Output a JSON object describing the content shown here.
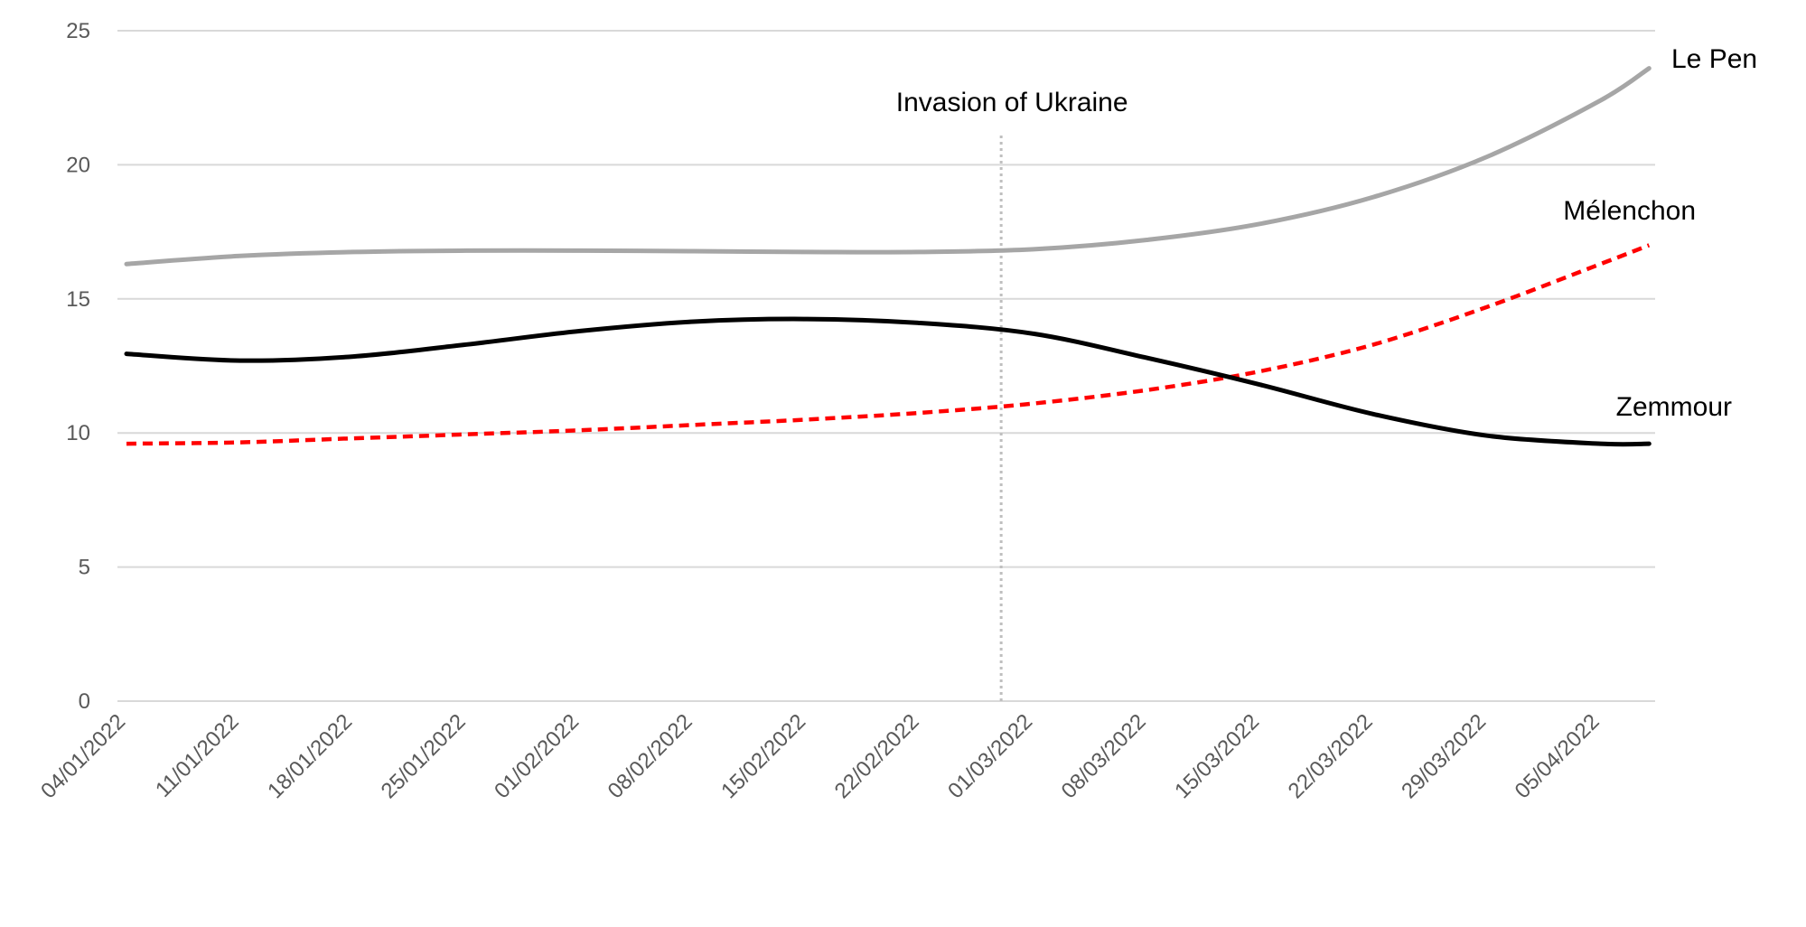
{
  "chart_data": {
    "type": "line",
    "title": "",
    "xlabel": "",
    "ylabel": "",
    "ylim": [
      0,
      25
    ],
    "y_ticks": [
      0,
      5,
      10,
      15,
      20,
      25
    ],
    "grid": true,
    "legend": "none",
    "x_ticks": [
      "04/01/2022",
      "11/01/2022",
      "18/01/2022",
      "25/01/2022",
      "01/02/2022",
      "08/02/2022",
      "15/02/2022",
      "22/02/2022",
      "01/03/2022",
      "08/03/2022",
      "15/03/2022",
      "22/03/2022",
      "29/03/2022",
      "05/04/2022"
    ],
    "series": [
      {
        "name": "Le Pen",
        "color": "#a6a6a6",
        "style": "solid",
        "points": [
          [
            "04/01/2022",
            16.3
          ],
          [
            "11/01/2022",
            16.6
          ],
          [
            "18/01/2022",
            16.75
          ],
          [
            "25/01/2022",
            16.8
          ],
          [
            "01/02/2022",
            16.8
          ],
          [
            "08/02/2022",
            16.78
          ],
          [
            "15/02/2022",
            16.75
          ],
          [
            "22/02/2022",
            16.75
          ],
          [
            "01/03/2022",
            16.85
          ],
          [
            "08/03/2022",
            17.2
          ],
          [
            "15/03/2022",
            17.8
          ],
          [
            "22/03/2022",
            18.8
          ],
          [
            "29/03/2022",
            20.3
          ],
          [
            "05/04/2022",
            22.4
          ],
          [
            "08/04/2022",
            23.6
          ]
        ]
      },
      {
        "name": "Mélenchon",
        "color": "#ff0000",
        "style": "dashed",
        "points": [
          [
            "04/01/2022",
            9.6
          ],
          [
            "11/01/2022",
            9.65
          ],
          [
            "18/01/2022",
            9.8
          ],
          [
            "25/01/2022",
            9.95
          ],
          [
            "01/02/2022",
            10.1
          ],
          [
            "08/02/2022",
            10.3
          ],
          [
            "15/02/2022",
            10.5
          ],
          [
            "22/02/2022",
            10.75
          ],
          [
            "01/03/2022",
            11.1
          ],
          [
            "08/03/2022",
            11.6
          ],
          [
            "15/03/2022",
            12.3
          ],
          [
            "22/03/2022",
            13.3
          ],
          [
            "29/03/2022",
            14.7
          ],
          [
            "05/04/2022",
            16.3
          ],
          [
            "08/04/2022",
            17.0
          ]
        ]
      },
      {
        "name": "Zemmour",
        "color": "#000000",
        "style": "solid",
        "points": [
          [
            "04/01/2022",
            12.95
          ],
          [
            "11/01/2022",
            12.7
          ],
          [
            "18/01/2022",
            12.85
          ],
          [
            "25/01/2022",
            13.3
          ],
          [
            "01/02/2022",
            13.8
          ],
          [
            "08/02/2022",
            14.15
          ],
          [
            "15/02/2022",
            14.25
          ],
          [
            "22/02/2022",
            14.1
          ],
          [
            "01/03/2022",
            13.7
          ],
          [
            "08/03/2022",
            12.8
          ],
          [
            "15/03/2022",
            11.8
          ],
          [
            "22/03/2022",
            10.7
          ],
          [
            "29/03/2022",
            9.9
          ],
          [
            "05/04/2022",
            9.6
          ],
          [
            "08/04/2022",
            9.6
          ]
        ]
      }
    ],
    "annotations": [
      {
        "text": "Invasion of Ukraine",
        "x": "27/02/2022",
        "style": "dotted-vertical-line",
        "color": "#bfbfbf"
      }
    ]
  }
}
